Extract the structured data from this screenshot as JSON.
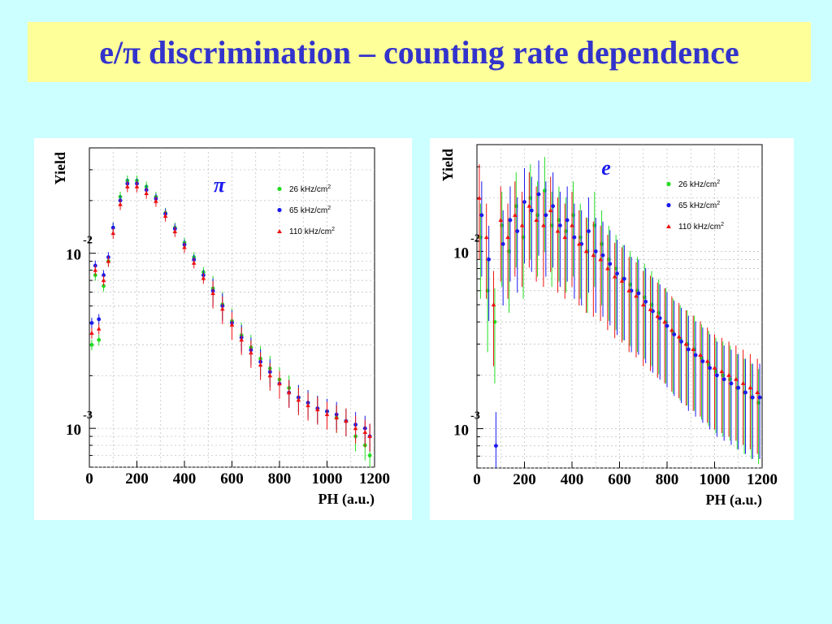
{
  "title": "e/π discrimination – counting rate dependence",
  "colors": {
    "background": "#ccffff",
    "title_box": "#ffff99",
    "title_text": "#3333cc",
    "26 kHz/cm2": "#22dd22",
    "65 kHz/cm2": "#1a1aee",
    "110 kHz/cm2": "#ee1111"
  },
  "chart_data": [
    {
      "type": "scatter",
      "particle_label": "π",
      "xlabel": "PH (a.u.)",
      "ylabel": "Yield",
      "xlim": [
        0,
        1200
      ],
      "ylim": [
        0.0006,
        0.04
      ],
      "log_y": true,
      "xticks": [
        "0",
        "200",
        "400",
        "600",
        "800",
        "1000",
        "1200"
      ],
      "yticks": [
        {
          "base": "10",
          "exp": "-2",
          "value": 0.01
        },
        {
          "base": "10",
          "exp": "-3",
          "value": 0.001
        }
      ],
      "grid": true,
      "legend_position": "top-right",
      "series": [
        {
          "name": "26 kHz/cm2",
          "legend": "26 kHz/cm",
          "sup": "2",
          "marker": "circle",
          "x": [
            10,
            25,
            40,
            60,
            80,
            100,
            130,
            160,
            200,
            240,
            280,
            320,
            360,
            400,
            440,
            480,
            520,
            560,
            600,
            640,
            680,
            720,
            760,
            800,
            840,
            880,
            920,
            960,
            1000,
            1040,
            1080,
            1120,
            1160,
            1180
          ],
          "y": [
            0.003,
            0.0075,
            0.0032,
            0.0065,
            0.009,
            0.014,
            0.021,
            0.026,
            0.026,
            0.024,
            0.021,
            0.017,
            0.014,
            0.0115,
            0.0095,
            0.0078,
            0.0063,
            0.0051,
            0.0041,
            0.0034,
            0.0029,
            0.0025,
            0.0022,
            0.0019,
            0.0017,
            0.0015,
            0.0014,
            0.0013,
            0.00125,
            0.00115,
            0.0011,
            0.0009,
            0.0008,
            0.0007
          ]
        },
        {
          "name": "65 kHz/cm2",
          "legend": "65 kHz/cm",
          "sup": "2",
          "marker": "circle",
          "x": [
            10,
            25,
            40,
            60,
            80,
            100,
            130,
            160,
            200,
            240,
            280,
            320,
            360,
            400,
            440,
            480,
            520,
            560,
            600,
            640,
            680,
            720,
            760,
            800,
            840,
            880,
            920,
            960,
            1000,
            1040,
            1080,
            1120,
            1160,
            1180
          ],
          "y": [
            0.004,
            0.0085,
            0.0042,
            0.0075,
            0.0095,
            0.014,
            0.02,
            0.025,
            0.025,
            0.023,
            0.0205,
            0.0168,
            0.0138,
            0.0112,
            0.0092,
            0.0075,
            0.0061,
            0.005,
            0.004,
            0.0033,
            0.0028,
            0.0024,
            0.0021,
            0.0018,
            0.0016,
            0.0015,
            0.0014,
            0.0013,
            0.00125,
            0.0012,
            0.0011,
            0.00105,
            0.001,
            0.0009
          ]
        },
        {
          "name": "110 kHz/cm2",
          "legend": "110 kHz/cm",
          "sup": "2",
          "marker": "triangle",
          "x": [
            10,
            25,
            40,
            60,
            80,
            100,
            130,
            160,
            200,
            240,
            280,
            320,
            360,
            400,
            440,
            480,
            520,
            560,
            600,
            640,
            680,
            720,
            760,
            800,
            840,
            880,
            920,
            960,
            1000,
            1040,
            1080,
            1120,
            1160,
            1180
          ],
          "y": [
            0.0035,
            0.008,
            0.0037,
            0.007,
            0.009,
            0.013,
            0.019,
            0.024,
            0.024,
            0.022,
            0.0198,
            0.0163,
            0.0133,
            0.0108,
            0.0088,
            0.0072,
            0.0059,
            0.0048,
            0.0039,
            0.0032,
            0.0027,
            0.0023,
            0.002,
            0.0018,
            0.0016,
            0.00145,
            0.00135,
            0.00128,
            0.0012,
            0.00115,
            0.0011,
            0.001,
            0.00095,
            0.0009
          ]
        }
      ]
    },
    {
      "type": "scatter",
      "particle_label": "e",
      "xlabel": "PH (a.u.)",
      "ylabel": "Yield",
      "xlim": [
        0,
        1200
      ],
      "ylim": [
        0.0006,
        0.04
      ],
      "log_y": true,
      "xticks": [
        "0",
        "200",
        "400",
        "600",
        "800",
        "1000",
        "1200"
      ],
      "yticks": [
        {
          "base": "10",
          "exp": "-2",
          "value": 0.01
        },
        {
          "base": "10",
          "exp": "-3",
          "value": 0.001
        }
      ],
      "grid": true,
      "legend_position": "top-right",
      "series": [
        {
          "name": "26 kHz/cm2",
          "legend": "26 kHz/cm",
          "sup": "2",
          "marker": "circle",
          "x": [
            15,
            45,
            75,
            105,
            135,
            165,
            195,
            225,
            255,
            285,
            315,
            345,
            375,
            405,
            435,
            465,
            495,
            525,
            555,
            585,
            615,
            645,
            675,
            705,
            735,
            765,
            795,
            825,
            855,
            885,
            915,
            945,
            975,
            1005,
            1035,
            1065,
            1095,
            1125,
            1155,
            1185
          ],
          "y": [
            0.012,
            0.006,
            0.004,
            0.014,
            0.01,
            0.018,
            0.012,
            0.02,
            0.016,
            0.022,
            0.014,
            0.015,
            0.013,
            0.016,
            0.012,
            0.01,
            0.014,
            0.011,
            0.009,
            0.008,
            0.007,
            0.0065,
            0.006,
            0.0055,
            0.005,
            0.0045,
            0.004,
            0.0035,
            0.0032,
            0.003,
            0.0028,
            0.0025,
            0.0023,
            0.0021,
            0.002,
            0.0019,
            0.0017,
            0.0016,
            0.0015,
            0.0014
          ]
        },
        {
          "name": "65 kHz/cm2",
          "legend": "65 kHz/cm",
          "sup": "2",
          "marker": "circle",
          "x": [
            20,
            50,
            80,
            110,
            140,
            170,
            200,
            230,
            260,
            290,
            320,
            350,
            380,
            410,
            440,
            470,
            500,
            530,
            560,
            590,
            620,
            650,
            680,
            710,
            740,
            770,
            800,
            830,
            860,
            890,
            920,
            950,
            980,
            1010,
            1040,
            1070,
            1100,
            1130,
            1160,
            1190
          ],
          "y": [
            0.016,
            0.009,
            0.0008,
            0.011,
            0.015,
            0.013,
            0.019,
            0.017,
            0.021,
            0.016,
            0.018,
            0.014,
            0.015,
            0.012,
            0.011,
            0.013,
            0.01,
            0.0095,
            0.0085,
            0.0075,
            0.007,
            0.006,
            0.0058,
            0.0052,
            0.0046,
            0.0042,
            0.0038,
            0.0034,
            0.0031,
            0.0028,
            0.0026,
            0.0024,
            0.0022,
            0.002,
            0.0019,
            0.0018,
            0.0017,
            0.0016,
            0.0015,
            0.0015
          ]
        },
        {
          "name": "110 kHz/cm2",
          "legend": "110 kHz/cm",
          "sup": "2",
          "marker": "triangle",
          "x": [
            10,
            40,
            70,
            100,
            130,
            160,
            190,
            220,
            250,
            280,
            310,
            340,
            370,
            400,
            430,
            460,
            490,
            520,
            550,
            580,
            610,
            640,
            670,
            700,
            730,
            760,
            790,
            820,
            850,
            880,
            910,
            940,
            970,
            1000,
            1030,
            1060,
            1090,
            1120,
            1150,
            1180
          ],
          "y": [
            0.02,
            0.012,
            0.005,
            0.015,
            0.012,
            0.016,
            0.014,
            0.018,
            0.015,
            0.014,
            0.017,
            0.013,
            0.012,
            0.014,
            0.011,
            0.01,
            0.0095,
            0.009,
            0.008,
            0.0072,
            0.0068,
            0.006,
            0.0056,
            0.005,
            0.0047,
            0.0043,
            0.004,
            0.0036,
            0.0033,
            0.003,
            0.0028,
            0.0026,
            0.0024,
            0.0022,
            0.0021,
            0.002,
            0.0019,
            0.0018,
            0.0017,
            0.0016
          ]
        }
      ]
    }
  ]
}
